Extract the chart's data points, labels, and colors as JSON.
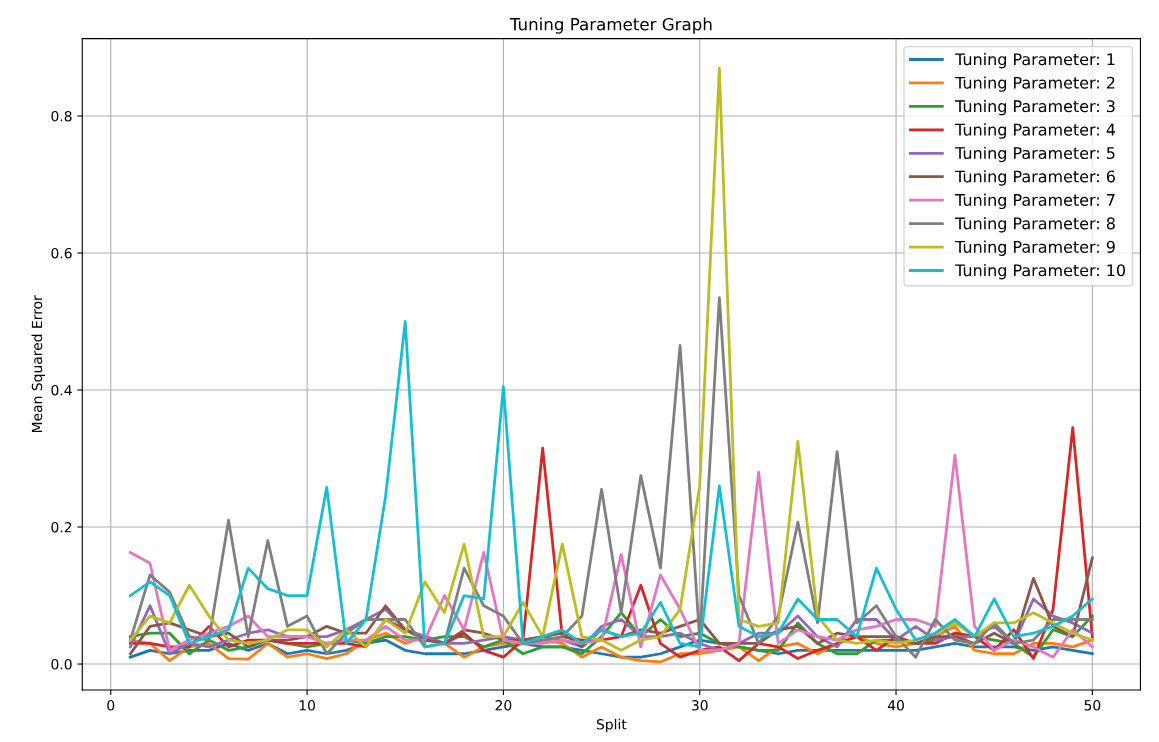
{
  "chart_data": {
    "type": "line",
    "title": "Tuning Parameter Graph",
    "xlabel": "Split",
    "ylabel": "Mean Squared Error",
    "x": [
      1,
      2,
      3,
      4,
      5,
      6,
      7,
      8,
      9,
      10,
      11,
      12,
      13,
      14,
      15,
      16,
      17,
      18,
      19,
      20,
      21,
      22,
      23,
      24,
      25,
      26,
      27,
      28,
      29,
      30,
      31,
      32,
      33,
      34,
      35,
      36,
      37,
      38,
      39,
      40,
      41,
      42,
      43,
      44,
      45,
      46,
      47,
      48,
      49,
      50
    ],
    "xlim": [
      -1.45,
      52.45
    ],
    "xticks": [
      0,
      10,
      20,
      30,
      40,
      50
    ],
    "ylim": [
      -0.038,
      0.913
    ],
    "yticks": [
      {
        "value": 0,
        "label": "0.0"
      },
      {
        "value": 0.2,
        "label": "0.2"
      },
      {
        "value": 0.4,
        "label": "0.4"
      },
      {
        "value": 0.6,
        "label": "0.6"
      },
      {
        "value": 0.8,
        "label": "0.8"
      }
    ],
    "grid": true,
    "legend": "top right",
    "marker": "none",
    "line_style": "solid",
    "series": [
      {
        "name": "Tuning Parameter: 1",
        "color": "#1f77b4",
        "values": [
          0.01,
          0.02,
          0.015,
          0.02,
          0.02,
          0.03,
          0.02,
          0.03,
          0.015,
          0.02,
          0.015,
          0.02,
          0.03,
          0.035,
          0.02,
          0.015,
          0.015,
          0.015,
          0.02,
          0.025,
          0.03,
          0.025,
          0.025,
          0.02,
          0.015,
          0.01,
          0.01,
          0.015,
          0.025,
          0.035,
          0.03,
          0.025,
          0.02,
          0.015,
          0.02,
          0.02,
          0.02,
          0.02,
          0.02,
          0.02,
          0.02,
          0.025,
          0.03,
          0.025,
          0.025,
          0.025,
          0.02,
          0.025,
          0.02,
          0.015
        ]
      },
      {
        "name": "Tuning Parameter: 2",
        "color": "#ff7f0e",
        "values": [
          0.035,
          0.03,
          0.005,
          0.025,
          0.03,
          0.008,
          0.007,
          0.03,
          0.01,
          0.015,
          0.008,
          0.015,
          0.035,
          0.045,
          0.03,
          0.04,
          0.03,
          0.01,
          0.025,
          0.03,
          0.03,
          0.035,
          0.03,
          0.01,
          0.025,
          0.01,
          0.005,
          0.003,
          0.015,
          0.015,
          0.02,
          0.025,
          0.005,
          0.025,
          0.03,
          0.015,
          0.03,
          0.04,
          0.03,
          0.025,
          0.03,
          0.04,
          0.055,
          0.02,
          0.015,
          0.015,
          0.03,
          0.03,
          0.025,
          0.035
        ]
      },
      {
        "name": "Tuning Parameter: 3",
        "color": "#2ca02c",
        "values": [
          0.04,
          0.045,
          0.045,
          0.015,
          0.035,
          0.02,
          0.025,
          0.035,
          0.03,
          0.025,
          0.03,
          0.035,
          0.03,
          0.04,
          0.04,
          0.035,
          0.04,
          0.04,
          0.025,
          0.035,
          0.015,
          0.025,
          0.025,
          0.015,
          0.04,
          0.075,
          0.04,
          0.065,
          0.04,
          0.045,
          0.03,
          0.025,
          0.02,
          0.02,
          0.06,
          0.03,
          0.015,
          0.015,
          0.035,
          0.035,
          0.03,
          0.035,
          0.045,
          0.04,
          0.035,
          0.03,
          0.01,
          0.05,
          0.04,
          0.07
        ]
      },
      {
        "name": "Tuning Parameter: 4",
        "color": "#d62728",
        "values": [
          0.03,
          0.03,
          0.025,
          0.025,
          0.055,
          0.025,
          0.035,
          0.035,
          0.03,
          0.03,
          0.03,
          0.03,
          0.025,
          0.065,
          0.05,
          0.04,
          0.03,
          0.045,
          0.02,
          0.01,
          0.035,
          0.315,
          0.04,
          0.035,
          0.035,
          0.04,
          0.115,
          0.03,
          0.01,
          0.02,
          0.025,
          0.005,
          0.03,
          0.025,
          0.008,
          0.02,
          0.03,
          0.04,
          0.02,
          0.04,
          0.03,
          0.03,
          0.045,
          0.04,
          0.02,
          0.05,
          0.008,
          0.08,
          0.345,
          0.04
        ]
      },
      {
        "name": "Tuning Parameter: 5",
        "color": "#9467bd",
        "values": [
          0.025,
          0.085,
          0.015,
          0.03,
          0.025,
          0.035,
          0.045,
          0.05,
          0.04,
          0.04,
          0.04,
          0.05,
          0.065,
          0.08,
          0.05,
          0.04,
          0.03,
          0.03,
          0.035,
          0.04,
          0.035,
          0.04,
          0.035,
          0.025,
          0.055,
          0.065,
          0.04,
          0.04,
          0.045,
          0.03,
          0.02,
          0.03,
          0.045,
          0.045,
          0.07,
          0.04,
          0.025,
          0.065,
          0.065,
          0.035,
          0.055,
          0.035,
          0.04,
          0.04,
          0.055,
          0.03,
          0.095,
          0.07,
          0.06,
          0.045
        ]
      },
      {
        "name": "Tuning Parameter: 6",
        "color": "#8c564b",
        "values": [
          0.015,
          0.055,
          0.06,
          0.05,
          0.04,
          0.045,
          0.025,
          0.035,
          0.035,
          0.04,
          0.055,
          0.045,
          0.045,
          0.085,
          0.05,
          0.035,
          0.03,
          0.05,
          0.045,
          0.035,
          0.035,
          0.04,
          0.045,
          0.025,
          0.05,
          0.04,
          0.05,
          0.045,
          0.055,
          0.065,
          0.03,
          0.03,
          0.03,
          0.05,
          0.055,
          0.03,
          0.045,
          0.04,
          0.04,
          0.04,
          0.03,
          0.04,
          0.04,
          0.03,
          0.045,
          0.03,
          0.125,
          0.055,
          0.04,
          0.155
        ]
      },
      {
        "name": "Tuning Parameter: 7",
        "color": "#e377c2",
        "values": [
          0.163,
          0.147,
          0.02,
          0.035,
          0.045,
          0.055,
          0.07,
          0.04,
          0.04,
          0.04,
          0.03,
          0.035,
          0.035,
          0.055,
          0.035,
          0.035,
          0.1,
          0.05,
          0.163,
          0.035,
          0.03,
          0.03,
          0.035,
          0.03,
          0.035,
          0.16,
          0.025,
          0.13,
          0.08,
          0.02,
          0.02,
          0.03,
          0.28,
          0.03,
          0.05,
          0.04,
          0.035,
          0.05,
          0.055,
          0.065,
          0.065,
          0.055,
          0.305,
          0.055,
          0.02,
          0.035,
          0.025,
          0.01,
          0.05,
          0.025
        ]
      },
      {
        "name": "Tuning Parameter: 8",
        "color": "#7f7f7f",
        "values": [
          0.035,
          0.13,
          0.105,
          0.04,
          0.035,
          0.21,
          0.04,
          0.18,
          0.055,
          0.07,
          0.015,
          0.045,
          0.065,
          0.065,
          0.065,
          0.025,
          0.03,
          0.14,
          0.085,
          0.07,
          0.03,
          0.035,
          0.04,
          0.07,
          0.255,
          0.075,
          0.275,
          0.14,
          0.465,
          0.035,
          0.535,
          0.1,
          0.03,
          0.07,
          0.207,
          0.06,
          0.31,
          0.06,
          0.085,
          0.04,
          0.01,
          0.065,
          0.035,
          0.03,
          0.06,
          0.03,
          0.035,
          0.065,
          0.065,
          0.065
        ]
      },
      {
        "name": "Tuning Parameter: 9",
        "color": "#bcbd22",
        "values": [
          0.035,
          0.07,
          0.06,
          0.115,
          0.07,
          0.035,
          0.03,
          0.035,
          0.05,
          0.05,
          0.025,
          0.05,
          0.025,
          0.065,
          0.045,
          0.12,
          0.075,
          0.175,
          0.04,
          0.04,
          0.09,
          0.04,
          0.175,
          0.04,
          0.035,
          0.02,
          0.035,
          0.04,
          0.08,
          0.26,
          0.87,
          0.065,
          0.055,
          0.06,
          0.325,
          0.07,
          0.035,
          0.03,
          0.035,
          0.03,
          0.035,
          0.045,
          0.06,
          0.04,
          0.06,
          0.06,
          0.075,
          0.06,
          0.045,
          0.035
        ]
      },
      {
        "name": "Tuning Parameter: 10",
        "color": "#17becf",
        "values": [
          0.1,
          0.12,
          0.1,
          0.03,
          0.04,
          0.05,
          0.14,
          0.11,
          0.1,
          0.1,
          0.258,
          0.03,
          0.065,
          0.245,
          0.5,
          0.025,
          0.03,
          0.1,
          0.095,
          0.405,
          0.03,
          0.04,
          0.05,
          0.03,
          0.05,
          0.04,
          0.045,
          0.09,
          0.03,
          0.025,
          0.26,
          0.055,
          0.04,
          0.045,
          0.095,
          0.065,
          0.065,
          0.04,
          0.14,
          0.08,
          0.035,
          0.045,
          0.065,
          0.04,
          0.095,
          0.04,
          0.045,
          0.055,
          0.07,
          0.095
        ]
      }
    ]
  }
}
